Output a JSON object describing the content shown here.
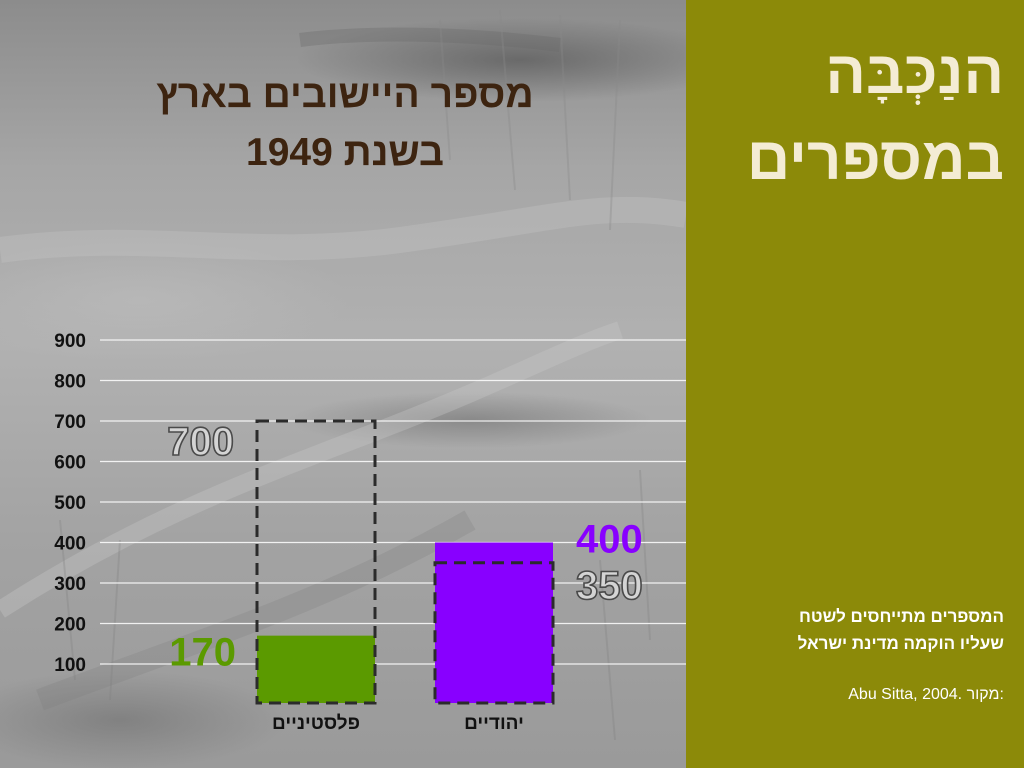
{
  "header": {
    "title_line1": "מספר היישובים בארץ",
    "title_line2": "בשנת 1949"
  },
  "sidebar": {
    "title_line1": "הנַכְּבָּה",
    "title_line2": "במספרים",
    "note_line1": "המספרים מתייחסים לשטח",
    "note_line2": "שעליו הוקמה מדינת ישראל",
    "source_label": "מקור:",
    "source_text": "Abu Sitta, 2004."
  },
  "colors": {
    "left_background": "#a6a6a6",
    "right_background": "#8c8a09",
    "title_color": "#3d2410",
    "sidebar_title_color": "#f4ecd4",
    "palestinians_bar": "#5b9a00",
    "jews_bar": "#8800ff"
  },
  "chart_data": {
    "type": "bar",
    "title": "",
    "xlabel": "",
    "ylabel": "",
    "ylim": [
      100,
      900
    ],
    "yticks": [
      100,
      200,
      300,
      400,
      500,
      600,
      700,
      800,
      900
    ],
    "grid": true,
    "categories": [
      "פלסטיניים",
      "יהודיים"
    ],
    "series": [
      {
        "values": [
          170,
          400
        ],
        "style": "solid",
        "colors": [
          "#5b9a00",
          "#8800ff"
        ]
      },
      {
        "values": [
          700,
          350
        ],
        "style": "dashed-outline"
      }
    ],
    "value_labels": {
      "palestinians_solid": "170",
      "palestinians_outline": "700",
      "jews_solid": "400",
      "jews_outline": "350"
    }
  }
}
